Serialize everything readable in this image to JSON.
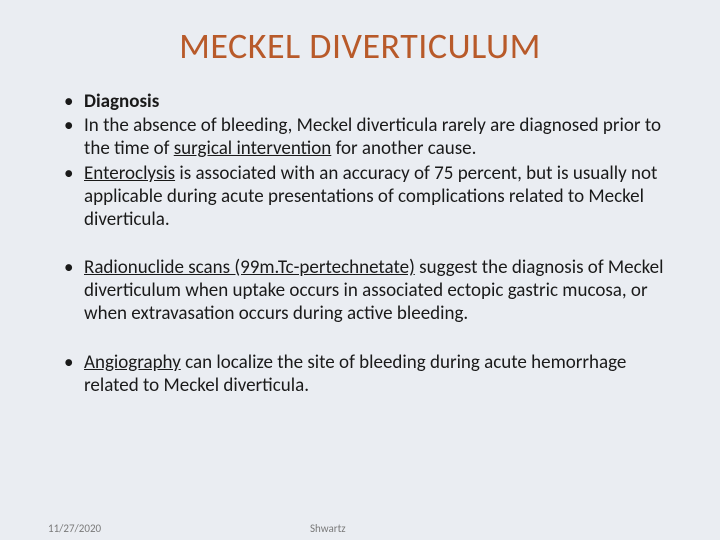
{
  "colors": {
    "background": "#eaedf2",
    "title": "#b85a2a",
    "body_text": "#1a1a1a",
    "footer_text": "#7a7a7a"
  },
  "typography": {
    "title_fontsize": 36,
    "body_fontsize": 19,
    "footer_fontsize": 11,
    "font_family": "Calibri"
  },
  "title": "MECKEL DIVERTICULUM",
  "bullets_block1": {
    "b1": "Diagnosis",
    "b2_pre": "In the absence of bleeding, Meckel diverticula rarely are diagnosed prior to the time of ",
    "b2_u": "surgical intervention",
    "b2_post": " for another cause.",
    "b3_u": "Enteroclysis",
    "b3_post": " is associated with an accuracy of 75 percent, but is usually not applicable during acute presentations of complications related to Meckel diverticula."
  },
  "bullets_block2": {
    "b4_u": "Radionuclide scans (99m.Tc-pertechnetate)",
    "b4_post": " suggest the diagnosis of Meckel diverticulum when uptake occurs in associated ectopic gastric mucosa, or when extravasation occurs during active bleeding."
  },
  "bullets_block3": {
    "b5_u": "Angiography",
    "b5_post": " can localize the site of bleeding during acute hemorrhage related to Meckel diverticula."
  },
  "footer": {
    "date": "11/27/2020",
    "author": "Shwartz"
  }
}
